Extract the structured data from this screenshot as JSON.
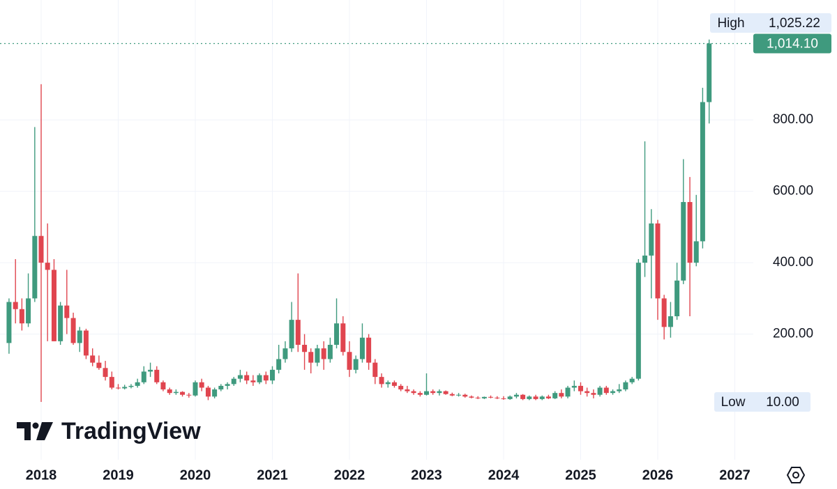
{
  "chart_data": {
    "type": "candlestick",
    "brand": "TradingView",
    "up_color": "#3f9a7e",
    "down_color": "#e0454f",
    "xlim": [
      2017.466,
      2027.24
    ],
    "xticks": [
      2018,
      2019,
      2020,
      2021,
      2022,
      2023,
      2024,
      2025,
      2026,
      2027
    ],
    "ylim": [
      -152,
      1136
    ],
    "yticks": [
      {
        "value": 200,
        "label": "200.00"
      },
      {
        "value": 400,
        "label": "400.00"
      },
      {
        "value": 600,
        "label": "600.00"
      },
      {
        "value": 800,
        "label": "800.00"
      }
    ],
    "grid": true,
    "x": [
      2017.583,
      2017.667,
      2017.75,
      2017.833,
      2017.917,
      2018,
      2018.083,
      2018.167,
      2018.25,
      2018.333,
      2018.417,
      2018.5,
      2018.583,
      2018.667,
      2018.75,
      2018.833,
      2018.917,
      2019,
      2019.083,
      2019.167,
      2019.25,
      2019.333,
      2019.417,
      2019.5,
      2019.583,
      2019.667,
      2019.75,
      2019.833,
      2019.917,
      2020,
      2020.083,
      2020.167,
      2020.25,
      2020.333,
      2020.417,
      2020.5,
      2020.583,
      2020.667,
      2020.75,
      2020.833,
      2020.917,
      2021,
      2021.083,
      2021.167,
      2021.25,
      2021.333,
      2021.417,
      2021.5,
      2021.583,
      2021.667,
      2021.75,
      2021.833,
      2021.917,
      2022,
      2022.083,
      2022.167,
      2022.25,
      2022.333,
      2022.417,
      2022.5,
      2022.583,
      2022.667,
      2022.75,
      2022.833,
      2022.917,
      2023,
      2023.083,
      2023.167,
      2023.25,
      2023.333,
      2023.417,
      2023.5,
      2023.583,
      2023.667,
      2023.75,
      2023.833,
      2023.917,
      2024,
      2024.083,
      2024.167,
      2024.25,
      2024.333,
      2024.417,
      2024.5,
      2024.583,
      2024.667,
      2024.75,
      2024.833,
      2024.917,
      2025,
      2025.083,
      2025.167,
      2025.25,
      2025.333,
      2025.417,
      2025.5,
      2025.583,
      2025.667,
      2025.75,
      2025.833,
      2025.917,
      2026,
      2026.083,
      2026.167,
      2026.25,
      2026.333,
      2026.417,
      2026.5,
      2026.583,
      2026.667
    ],
    "open": [
      175,
      290,
      270,
      230,
      300,
      475,
      400,
      380,
      180,
      280,
      245,
      175,
      210,
      140,
      120,
      105,
      80,
      50,
      48,
      52,
      55,
      65,
      95,
      100,
      65,
      45,
      35,
      38,
      30,
      28,
      65,
      50,
      25,
      45,
      55,
      60,
      75,
      85,
      70,
      65,
      85,
      70,
      100,
      130,
      160,
      240,
      170,
      150,
      120,
      160,
      130,
      170,
      230,
      150,
      100,
      130,
      190,
      120,
      80,
      60,
      65,
      55,
      45,
      40,
      35,
      30,
      40,
      35,
      40,
      32,
      28,
      30,
      25,
      22,
      20,
      24,
      22,
      20,
      18,
      25,
      30,
      18,
      25,
      18,
      25,
      20,
      35,
      25,
      50,
      55,
      40,
      35,
      30,
      50,
      35,
      40,
      45,
      65,
      75,
      400,
      420,
      510,
      300,
      220,
      250,
      350,
      570,
      400,
      460,
      850
    ],
    "high": [
      300,
      410,
      300,
      370,
      780,
      900,
      510,
      410,
      290,
      380,
      260,
      220,
      215,
      160,
      140,
      125,
      95,
      60,
      58,
      60,
      75,
      110,
      120,
      110,
      70,
      50,
      45,
      40,
      35,
      70,
      75,
      55,
      50,
      60,
      65,
      80,
      100,
      95,
      85,
      90,
      95,
      110,
      170,
      180,
      290,
      370,
      200,
      160,
      170,
      180,
      190,
      300,
      250,
      180,
      140,
      230,
      200,
      130,
      90,
      70,
      70,
      60,
      55,
      45,
      40,
      90,
      45,
      45,
      42,
      36,
      35,
      33,
      28,
      26,
      25,
      28,
      26,
      26,
      28,
      35,
      32,
      28,
      30,
      28,
      30,
      40,
      45,
      55,
      70,
      65,
      50,
      45,
      55,
      55,
      45,
      60,
      70,
      80,
      410,
      740,
      550,
      520,
      310,
      290,
      400,
      690,
      640,
      590,
      890,
      1025.22
    ],
    "low": [
      145,
      230,
      210,
      220,
      290,
      10,
      180,
      180,
      170,
      200,
      170,
      150,
      130,
      110,
      100,
      70,
      45,
      45,
      45,
      48,
      50,
      60,
      80,
      60,
      40,
      30,
      30,
      25,
      22,
      25,
      40,
      15,
      20,
      40,
      45,
      55,
      65,
      60,
      55,
      60,
      60,
      60,
      90,
      120,
      150,
      150,
      100,
      90,
      110,
      100,
      120,
      160,
      140,
      80,
      90,
      120,
      100,
      60,
      50,
      50,
      50,
      40,
      35,
      30,
      25,
      28,
      30,
      28,
      30,
      26,
      25,
      22,
      20,
      18,
      18,
      20,
      18,
      16,
      16,
      20,
      15,
      15,
      15,
      15,
      18,
      18,
      20,
      20,
      40,
      30,
      25,
      20,
      25,
      30,
      30,
      35,
      40,
      60,
      70,
      360,
      300,
      240,
      185,
      190,
      240,
      340,
      250,
      390,
      440,
      790
    ],
    "close": [
      290,
      270,
      230,
      300,
      475,
      400,
      380,
      180,
      280,
      245,
      175,
      210,
      140,
      120,
      105,
      80,
      50,
      48,
      52,
      55,
      65,
      95,
      100,
      65,
      45,
      35,
      38,
      30,
      28,
      65,
      50,
      25,
      45,
      55,
      60,
      75,
      85,
      70,
      65,
      85,
      70,
      100,
      130,
      160,
      240,
      170,
      150,
      120,
      160,
      130,
      170,
      230,
      150,
      100,
      130,
      190,
      120,
      80,
      60,
      65,
      55,
      45,
      40,
      35,
      30,
      40,
      35,
      40,
      32,
      28,
      30,
      25,
      22,
      20,
      24,
      22,
      20,
      18,
      25,
      30,
      18,
      25,
      18,
      25,
      20,
      35,
      25,
      50,
      55,
      40,
      35,
      30,
      50,
      35,
      40,
      45,
      65,
      75,
      400,
      420,
      510,
      300,
      220,
      250,
      350,
      570,
      400,
      460,
      850,
      1014.1
    ],
    "price_labels": {
      "high": {
        "text": "High",
        "value": 1025.22,
        "label": "1,025.22"
      },
      "low": {
        "text": "Low",
        "value": 10,
        "label": "10.00"
      },
      "last": {
        "value": 1014.1,
        "label": "1,014.10"
      }
    }
  }
}
